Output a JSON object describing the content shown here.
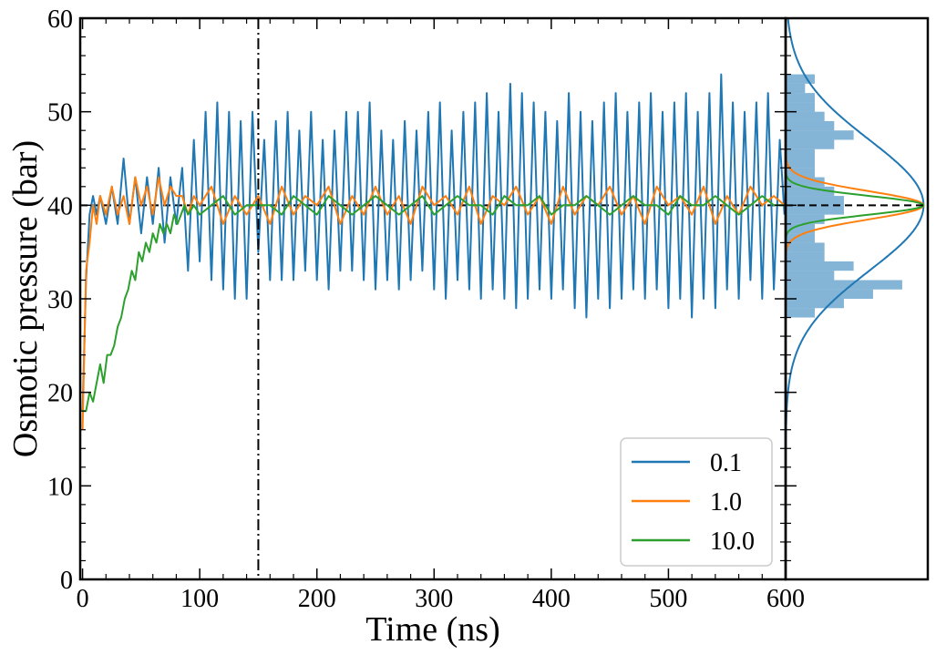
{
  "chart_data": {
    "type": "line",
    "xlabel": "Time (ns)",
    "ylabel": "Osmotic pressure (bar)",
    "xlim": [
      -2,
      600
    ],
    "ylim": [
      0,
      60
    ],
    "xticks": [
      0,
      100,
      200,
      300,
      400,
      500,
      600
    ],
    "yticks": [
      0,
      10,
      20,
      30,
      40,
      50,
      60
    ],
    "reference_line": {
      "y": 40,
      "style": "dashed",
      "color": "#000000"
    },
    "marker_line": {
      "x": 150,
      "style": "dash-dot",
      "color": "#000000"
    },
    "legend": {
      "position": "bottom-right"
    },
    "series": [
      {
        "name": "0.1",
        "color": "#1f77b4",
        "x": [
          0,
          3,
          6,
          9,
          12,
          15,
          20,
          25,
          30,
          35,
          40,
          45,
          50,
          55,
          60,
          65,
          70,
          75,
          80,
          85,
          90,
          95,
          100,
          105,
          110,
          115,
          120,
          125,
          130,
          135,
          140,
          145,
          150,
          155,
          160,
          165,
          170,
          175,
          180,
          185,
          190,
          195,
          200,
          205,
          210,
          215,
          220,
          225,
          230,
          235,
          240,
          245,
          250,
          255,
          260,
          265,
          270,
          275,
          280,
          285,
          290,
          295,
          300,
          305,
          310,
          315,
          320,
          325,
          330,
          335,
          340,
          345,
          350,
          355,
          360,
          365,
          370,
          375,
          380,
          385,
          390,
          395,
          400,
          405,
          410,
          415,
          420,
          425,
          430,
          435,
          440,
          445,
          450,
          455,
          460,
          465,
          470,
          475,
          480,
          485,
          490,
          495,
          500,
          505,
          510,
          515,
          520,
          525,
          530,
          535,
          540,
          545,
          550,
          555,
          560,
          565,
          570,
          575,
          580,
          585,
          590,
          595,
          599
        ],
        "y": [
          18,
          32,
          39,
          41,
          39,
          41,
          38,
          42,
          38,
          45,
          38,
          43,
          37,
          43,
          38,
          44,
          36,
          43,
          38,
          44,
          33,
          47,
          34,
          50,
          32,
          51,
          31,
          50,
          30,
          49,
          30,
          50,
          35,
          47,
          32,
          49,
          32,
          50,
          32,
          48,
          33,
          50,
          32,
          47,
          31,
          48,
          33,
          50,
          33,
          50,
          32,
          51,
          31,
          48,
          32,
          47,
          31,
          49,
          32,
          48,
          33,
          50,
          31,
          51,
          30,
          48,
          32,
          50,
          31,
          51,
          30,
          52,
          31,
          50,
          30,
          53,
          29,
          52,
          30,
          51,
          31,
          50,
          30,
          49,
          31,
          52,
          29,
          50,
          28,
          49,
          30,
          51,
          29,
          52,
          30,
          50,
          31,
          51,
          30,
          52,
          31,
          50,
          29,
          51,
          30,
          52,
          28,
          50,
          30,
          52,
          29,
          54,
          31,
          51,
          30,
          50,
          32,
          51,
          30,
          52,
          31,
          47,
          39
        ]
      },
      {
        "name": "1.0",
        "color": "#ff7f0e",
        "x": [
          0,
          3,
          6,
          9,
          12,
          15,
          20,
          25,
          30,
          35,
          40,
          45,
          50,
          55,
          60,
          65,
          70,
          75,
          80,
          85,
          90,
          95,
          100,
          110,
          120,
          130,
          140,
          150,
          160,
          170,
          180,
          190,
          200,
          210,
          220,
          230,
          240,
          250,
          260,
          270,
          280,
          290,
          300,
          310,
          320,
          330,
          340,
          350,
          360,
          370,
          380,
          390,
          400,
          410,
          420,
          430,
          440,
          450,
          460,
          470,
          480,
          490,
          500,
          510,
          520,
          530,
          540,
          550,
          560,
          570,
          580,
          590,
          599
        ],
        "y": [
          16,
          33,
          36,
          40,
          38,
          41,
          39,
          42,
          39,
          41,
          38,
          43,
          40,
          42,
          39,
          43,
          40,
          42,
          41,
          41,
          39,
          41,
          40,
          42,
          38,
          41,
          39,
          41,
          38,
          42,
          39,
          41,
          40,
          42,
          38,
          41,
          39,
          42,
          39,
          41,
          38,
          42,
          40,
          41,
          39,
          42,
          38,
          41,
          40,
          42,
          39,
          41,
          38,
          42,
          39,
          41,
          40,
          42,
          39,
          41,
          38,
          42,
          40,
          41,
          39,
          42,
          38,
          41,
          39,
          42,
          40,
          41,
          40
        ]
      },
      {
        "name": "10.0",
        "color": "#2ca02c",
        "x": [
          0,
          3,
          6,
          9,
          12,
          15,
          18,
          21,
          24,
          27,
          30,
          33,
          36,
          39,
          42,
          45,
          48,
          51,
          54,
          57,
          60,
          63,
          66,
          69,
          72,
          75,
          78,
          81,
          84,
          87,
          90,
          95,
          100,
          110,
          120,
          130,
          140,
          150,
          160,
          170,
          180,
          190,
          200,
          210,
          220,
          230,
          240,
          250,
          260,
          270,
          280,
          290,
          300,
          310,
          320,
          330,
          340,
          350,
          360,
          370,
          380,
          390,
          400,
          410,
          420,
          430,
          440,
          450,
          460,
          470,
          480,
          490,
          500,
          510,
          520,
          530,
          540,
          550,
          560,
          570,
          580,
          590,
          599
        ],
        "y": [
          18,
          18,
          20,
          19,
          21,
          23,
          21,
          24,
          24,
          25,
          27,
          28,
          30,
          31,
          33,
          32,
          35,
          34,
          36,
          35,
          37,
          36,
          38,
          37,
          38,
          37,
          39,
          38,
          39,
          40,
          39,
          40,
          39,
          40,
          41,
          39,
          40,
          40,
          40,
          39,
          41,
          40,
          39,
          41,
          40,
          39,
          40,
          41,
          40,
          39,
          40,
          41,
          39,
          40,
          41,
          40,
          40,
          39,
          41,
          40,
          40,
          41,
          39,
          40,
          40,
          41,
          40,
          39,
          40,
          41,
          40,
          40,
          39,
          41,
          40,
          40,
          41,
          40,
          39,
          40,
          41,
          40,
          40
        ]
      }
    ],
    "side_histogram": {
      "orientation": "horizontal",
      "color": "#1f77b4",
      "bins_center": [
        28.5,
        29.5,
        30.5,
        31.5,
        32.5,
        33.5,
        34.5,
        35.5,
        36.5,
        37.5,
        38.5,
        39.5,
        40.5,
        41.5,
        42.5,
        43.5,
        44.5,
        45.5,
        46.5,
        47.5,
        48.5,
        49.5,
        50.5,
        51.5,
        52.5,
        53.5
      ],
      "counts": [
        3,
        6,
        9,
        12,
        5,
        7,
        4,
        4,
        3,
        3,
        4,
        6,
        6,
        5,
        4,
        3,
        3,
        3,
        5,
        7,
        5,
        4,
        3,
        3,
        2,
        3
      ],
      "density_curves": [
        {
          "name": "0.1",
          "color": "#1f77b4",
          "mean": 40,
          "std": 7
        },
        {
          "name": "1.0",
          "color": "#ff7f0e",
          "mean": 40,
          "std": 1.5
        },
        {
          "name": "10.0",
          "color": "#2ca02c",
          "mean": 40,
          "std": 1.0
        }
      ]
    }
  }
}
